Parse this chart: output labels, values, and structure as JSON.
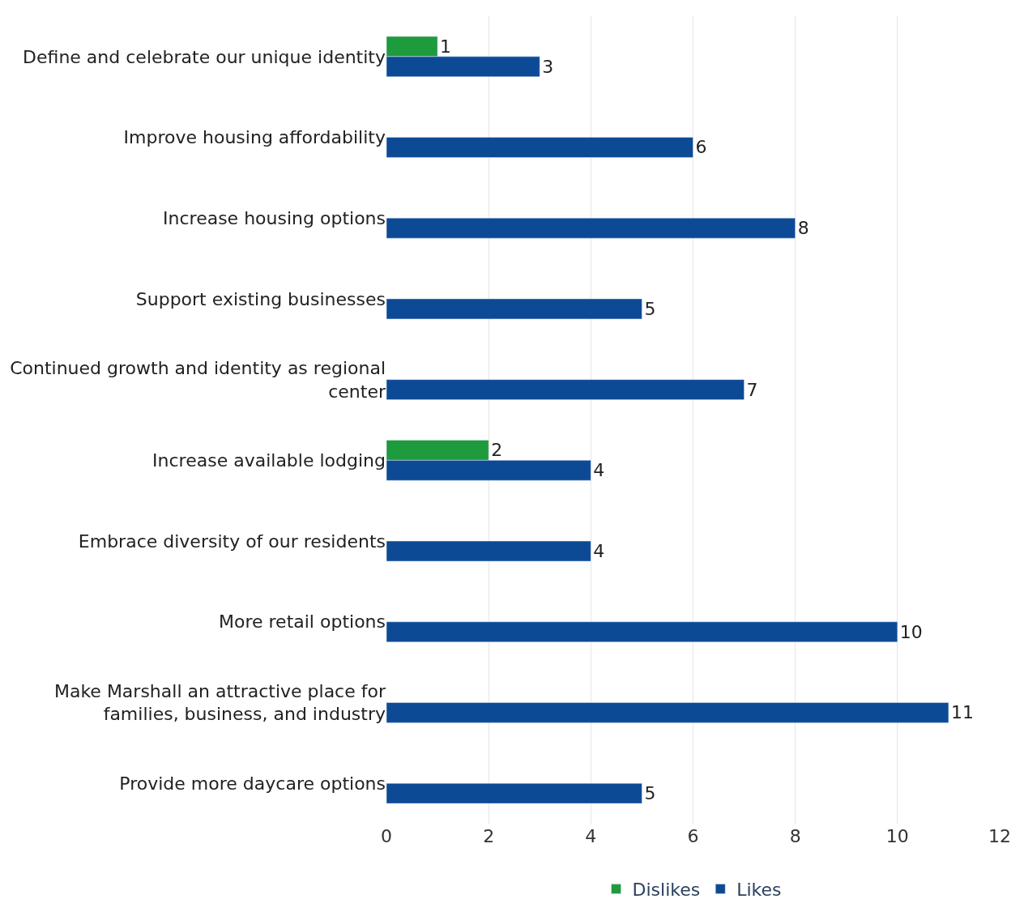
{
  "chart_data": {
    "type": "bar",
    "orientation": "horizontal",
    "categories": [
      "Define and celebrate our unique identity",
      "Improve housing affordability",
      "Increase housing options",
      "Support existing businesses",
      "Continued growth and identity as regional center",
      "Increase available lodging",
      "Embrace diversity of our residents",
      "More retail options",
      "Make Marshall an attractive place for families, business, and industry",
      "Provide more daycare options"
    ],
    "series": [
      {
        "name": "Dislikes",
        "color": "#1e9b3c",
        "values": [
          1,
          null,
          null,
          null,
          null,
          2,
          null,
          null,
          null,
          null
        ]
      },
      {
        "name": "Likes",
        "color": "#0d4a96",
        "values": [
          3,
          6,
          8,
          5,
          7,
          4,
          4,
          10,
          11,
          5
        ]
      }
    ],
    "xlim": [
      0,
      12
    ],
    "xticks": [
      0,
      2,
      4,
      6,
      8,
      10,
      12
    ],
    "grid": "x",
    "legend": "bottom",
    "data_labels": true
  }
}
